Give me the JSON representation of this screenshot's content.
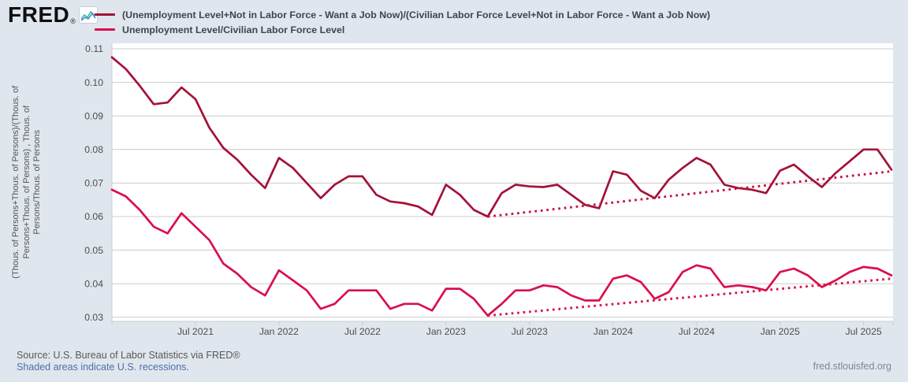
{
  "header": {
    "logo_text": "FRED",
    "logo_registered": "®",
    "legend": [
      {
        "label": "(Unemployment Level+Not in Labor Force - Want a Job Now)/(Civilian Labor Force Level+Not in Labor Force - Want a Job Now)",
        "color": "#a31237",
        "style": "solid"
      },
      {
        "label": "Unemployment Level/Civilian Labor Force Level",
        "color": "#da0f4c",
        "style": "solid"
      }
    ]
  },
  "y_axis_label": "(Thous. of Persons+Thous. of Persons)/(Thous. of\nPersons+Thous. of Persons) , Thous. of\nPersons/Thous. of Persons",
  "footer": {
    "source": "Source: U.S. Bureau of Labor Statistics via FRED®",
    "recessions_note": "Shaded areas indicate U.S. recessions.",
    "site": "fred.stlouisfed.org"
  },
  "colors": {
    "background": "#e0e6ee",
    "plot_background": "#ffffff",
    "gridline": "#cccccc",
    "series1": "#a31237",
    "series2": "#da0f4c",
    "trend1": "#c51143",
    "trend2": "#d8114a"
  },
  "chart_data": {
    "type": "line",
    "frequency": "monthly",
    "x_start": "2021-01",
    "x_end": "2025-09",
    "grid": true,
    "legend_position": "top-left",
    "ylim": [
      0.0288,
      0.1116
    ],
    "y_ticks": [
      0.03,
      0.04,
      0.05,
      0.06,
      0.07,
      0.08,
      0.09,
      0.1,
      0.11
    ],
    "x_ticks": [
      {
        "label": "Jul 2021",
        "month_index": 6
      },
      {
        "label": "Jan 2022",
        "month_index": 12
      },
      {
        "label": "Jul 2022",
        "month_index": 18
      },
      {
        "label": "Jan 2023",
        "month_index": 24
      },
      {
        "label": "Jul 2023",
        "month_index": 30
      },
      {
        "label": "Jan 2024",
        "month_index": 36
      },
      {
        "label": "Jul 2024",
        "month_index": 42
      },
      {
        "label": "Jan 2025",
        "month_index": 48
      },
      {
        "label": "Jul 2025",
        "month_index": 54
      }
    ],
    "series": [
      {
        "name": "(Unemployment Level+Not in Labor Force - Want a Job Now)/(Civilian Labor Force Level+Not in Labor Force - Want a Job Now)",
        "style": "solid",
        "color": "#a31237",
        "month_index_start": 0,
        "values": [
          0.1075,
          0.104,
          0.099,
          0.0935,
          0.094,
          0.0985,
          0.095,
          0.0865,
          0.0805,
          0.077,
          0.0725,
          0.0685,
          0.0775,
          0.0745,
          0.07,
          0.0655,
          0.0695,
          0.072,
          0.072,
          0.0665,
          0.0645,
          0.064,
          0.063,
          0.0605,
          0.0695,
          0.0665,
          0.062,
          0.06,
          0.067,
          0.0695,
          0.069,
          0.0688,
          0.0695,
          0.0665,
          0.0635,
          0.0625,
          0.0735,
          0.0725,
          0.0677,
          0.0655,
          0.071,
          0.0745,
          0.0775,
          0.0755,
          0.0695,
          0.0685,
          0.068,
          0.067,
          0.0737,
          0.0755,
          0.072,
          0.0688,
          0.073,
          0.0765,
          0.08,
          0.08,
          0.074
        ]
      },
      {
        "name": "Unemployment Level/Civilian Labor Force Level",
        "style": "solid",
        "color": "#da0f4c",
        "month_index_start": 0,
        "values": [
          0.068,
          0.066,
          0.062,
          0.057,
          0.055,
          0.061,
          0.057,
          0.053,
          0.046,
          0.043,
          0.039,
          0.0365,
          0.044,
          0.041,
          0.038,
          0.0325,
          0.034,
          0.038,
          0.038,
          0.038,
          0.0325,
          0.034,
          0.034,
          0.032,
          0.0385,
          0.0385,
          0.0355,
          0.0305,
          0.034,
          0.038,
          0.038,
          0.0395,
          0.039,
          0.0365,
          0.035,
          0.035,
          0.0415,
          0.0425,
          0.0405,
          0.0355,
          0.0375,
          0.0435,
          0.0455,
          0.0445,
          0.039,
          0.0395,
          0.039,
          0.038,
          0.0435,
          0.0445,
          0.0425,
          0.039,
          0.041,
          0.0435,
          0.045,
          0.0445,
          0.0425
        ]
      },
      {
        "name": "series1 linear trend (dotted)",
        "style": "dotted",
        "color": "#c51143",
        "month_index_start": 27,
        "month_index_end": 56,
        "values": [
          0.06,
          0.0735
        ]
      },
      {
        "name": "series2 linear trend (dotted)",
        "style": "dotted",
        "color": "#d8114a",
        "month_index_start": 27,
        "month_index_end": 56,
        "values": [
          0.0305,
          0.0415
        ]
      }
    ]
  }
}
